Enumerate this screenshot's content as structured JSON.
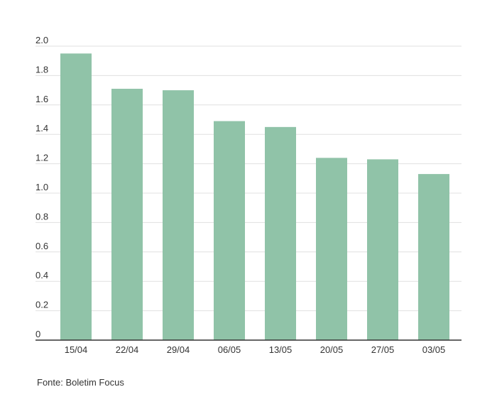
{
  "chart_data": {
    "type": "bar",
    "categories": [
      "15/04",
      "22/04",
      "29/04",
      "06/05",
      "13/05",
      "20/05",
      "27/05",
      "03/05"
    ],
    "values": [
      1.95,
      1.71,
      1.7,
      1.49,
      1.45,
      1.24,
      1.23,
      1.13
    ],
    "ylim": [
      0,
      2.0
    ],
    "y_ticks": [
      "0",
      "0.2",
      "0.4",
      "0.6",
      "0.8",
      "1.0",
      "1.2",
      "1.4",
      "1.6",
      "1.8",
      "2.0"
    ],
    "title": "",
    "xlabel": "",
    "ylabel": "",
    "grid": true,
    "bar_color": "#90c3a8",
    "gridline_color": "#e0e0e0",
    "axis_color": "#333333"
  },
  "source": "Fonte: Boletim Focus"
}
